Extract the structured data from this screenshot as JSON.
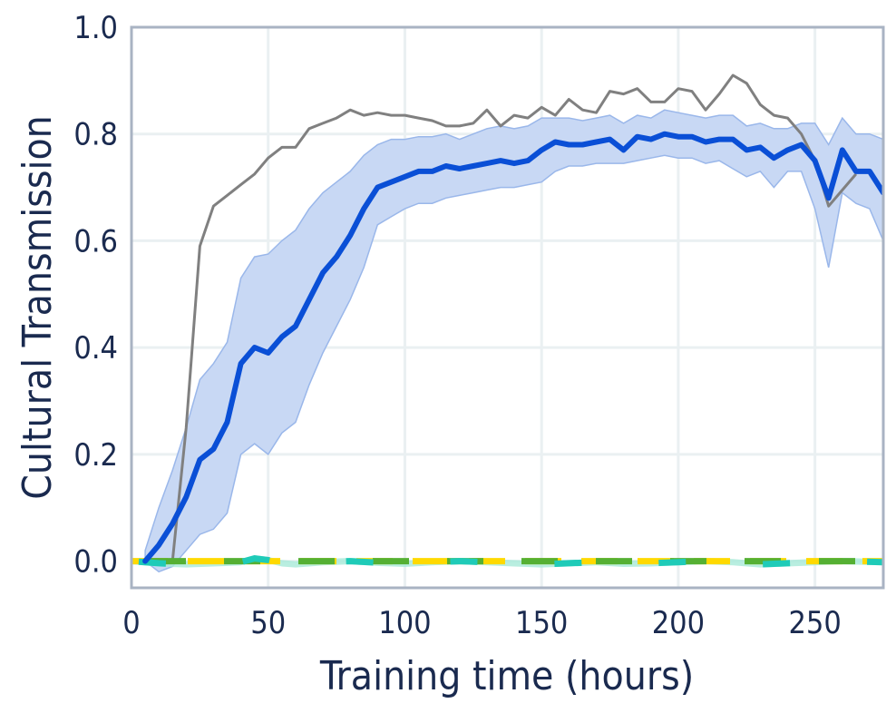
{
  "chart_data": {
    "type": "line",
    "title": "",
    "xlabel": "Training time (hours)",
    "ylabel": "Cultural Transmission",
    "xlim": [
      0,
      275
    ],
    "ylim": [
      -0.05,
      1.0
    ],
    "xticks": [
      "0",
      "50",
      "100",
      "150",
      "200",
      "250"
    ],
    "yticks": [
      "0.0",
      "0.2",
      "0.4",
      "0.6",
      "0.8",
      "1.0"
    ],
    "grid": true,
    "legend": "none",
    "colors": {
      "main": "#0a4fd6",
      "band": "#c8d8f4",
      "band_edge": "#9ab7ea",
      "max": "#808080",
      "yellow": "#ffd900",
      "green": "#55b033",
      "teal": "#1fcbb8",
      "frame": "#a9b3c3",
      "grid": "#eaf0f2",
      "text": "#1a2a4f"
    },
    "series": [
      {
        "style": "mean",
        "x": [
          5,
          10,
          15,
          20,
          25,
          30,
          35,
          40,
          45,
          50,
          55,
          60,
          65,
          70,
          75,
          80,
          85,
          90,
          95,
          100,
          105,
          110,
          115,
          120,
          125,
          130,
          135,
          140,
          145,
          150,
          155,
          160,
          165,
          170,
          175,
          180,
          185,
          190,
          195,
          200,
          205,
          210,
          215,
          220,
          225,
          230,
          235,
          240,
          245,
          250,
          255,
          260,
          265,
          270,
          275
        ],
        "y": [
          0.0,
          0.03,
          0.07,
          0.12,
          0.19,
          0.21,
          0.26,
          0.37,
          0.4,
          0.39,
          0.42,
          0.44,
          0.49,
          0.54,
          0.57,
          0.61,
          0.66,
          0.7,
          0.71,
          0.72,
          0.73,
          0.73,
          0.74,
          0.735,
          0.74,
          0.745,
          0.75,
          0.745,
          0.75,
          0.77,
          0.785,
          0.78,
          0.78,
          0.785,
          0.79,
          0.77,
          0.795,
          0.79,
          0.8,
          0.795,
          0.795,
          0.785,
          0.79,
          0.79,
          0.77,
          0.775,
          0.755,
          0.77,
          0.78,
          0.75,
          0.68,
          0.77,
          0.73,
          0.73,
          0.69
        ],
        "lower": [
          0.0,
          -0.02,
          -0.01,
          0.02,
          0.05,
          0.06,
          0.09,
          0.2,
          0.22,
          0.2,
          0.24,
          0.26,
          0.33,
          0.39,
          0.44,
          0.49,
          0.55,
          0.63,
          0.645,
          0.66,
          0.67,
          0.67,
          0.68,
          0.685,
          0.69,
          0.695,
          0.7,
          0.7,
          0.705,
          0.71,
          0.73,
          0.74,
          0.74,
          0.745,
          0.745,
          0.745,
          0.75,
          0.755,
          0.76,
          0.755,
          0.755,
          0.745,
          0.75,
          0.735,
          0.72,
          0.73,
          0.7,
          0.73,
          0.73,
          0.66,
          0.55,
          0.69,
          0.67,
          0.66,
          0.6
        ],
        "upper": [
          0.02,
          0.1,
          0.17,
          0.25,
          0.34,
          0.37,
          0.41,
          0.53,
          0.57,
          0.575,
          0.6,
          0.62,
          0.66,
          0.69,
          0.71,
          0.73,
          0.76,
          0.78,
          0.79,
          0.79,
          0.795,
          0.795,
          0.8,
          0.79,
          0.8,
          0.81,
          0.815,
          0.81,
          0.815,
          0.83,
          0.83,
          0.83,
          0.825,
          0.83,
          0.835,
          0.82,
          0.835,
          0.83,
          0.845,
          0.84,
          0.835,
          0.83,
          0.835,
          0.835,
          0.815,
          0.82,
          0.81,
          0.81,
          0.82,
          0.82,
          0.78,
          0.83,
          0.8,
          0.8,
          0.79
        ]
      },
      {
        "style": "max",
        "x": [
          15,
          20,
          25,
          30,
          35,
          40,
          45,
          50,
          55,
          60,
          65,
          70,
          75,
          80,
          85,
          90,
          95,
          100,
          105,
          110,
          115,
          120,
          125,
          130,
          135,
          140,
          145,
          150,
          155,
          160,
          165,
          170,
          175,
          180,
          185,
          190,
          195,
          200,
          205,
          210,
          215,
          220,
          225,
          230,
          235,
          240,
          245,
          250,
          255,
          260,
          265
        ],
        "y": [
          0.0,
          0.25,
          0.59,
          0.665,
          0.685,
          0.705,
          0.725,
          0.755,
          0.775,
          0.775,
          0.81,
          0.82,
          0.83,
          0.845,
          0.835,
          0.84,
          0.835,
          0.835,
          0.83,
          0.825,
          0.815,
          0.815,
          0.82,
          0.845,
          0.815,
          0.835,
          0.83,
          0.85,
          0.835,
          0.865,
          0.845,
          0.84,
          0.88,
          0.875,
          0.885,
          0.86,
          0.86,
          0.885,
          0.88,
          0.845,
          0.875,
          0.91,
          0.895,
          0.855,
          0.835,
          0.83,
          0.8,
          0.75,
          0.665,
          0.695,
          0.725
        ]
      },
      {
        "style": "dash",
        "color": "yellow",
        "x": [
          0,
          275
        ],
        "y": [
          0.0,
          0.0
        ]
      },
      {
        "style": "dash",
        "color": "green",
        "x": [
          0,
          275
        ],
        "y": [
          0.0,
          0.0
        ]
      },
      {
        "style": "dash",
        "color": "teal",
        "x": [
          0,
          10,
          20,
          30,
          40,
          45,
          50,
          55,
          60,
          65,
          70,
          80,
          90,
          100,
          110,
          120,
          130,
          140,
          150,
          160,
          170,
          180,
          190,
          200,
          210,
          220,
          230,
          240,
          250,
          260,
          275
        ],
        "y": [
          0.0,
          -0.004,
          -0.006,
          -0.004,
          -0.002,
          0.005,
          0.002,
          -0.004,
          -0.006,
          -0.004,
          -0.002,
          0.0,
          -0.003,
          -0.005,
          -0.002,
          0.0,
          -0.002,
          -0.004,
          -0.006,
          -0.004,
          -0.002,
          -0.005,
          -0.004,
          -0.002,
          0.0,
          -0.002,
          -0.006,
          -0.004,
          -0.002,
          0.0,
          -0.002
        ]
      }
    ]
  }
}
